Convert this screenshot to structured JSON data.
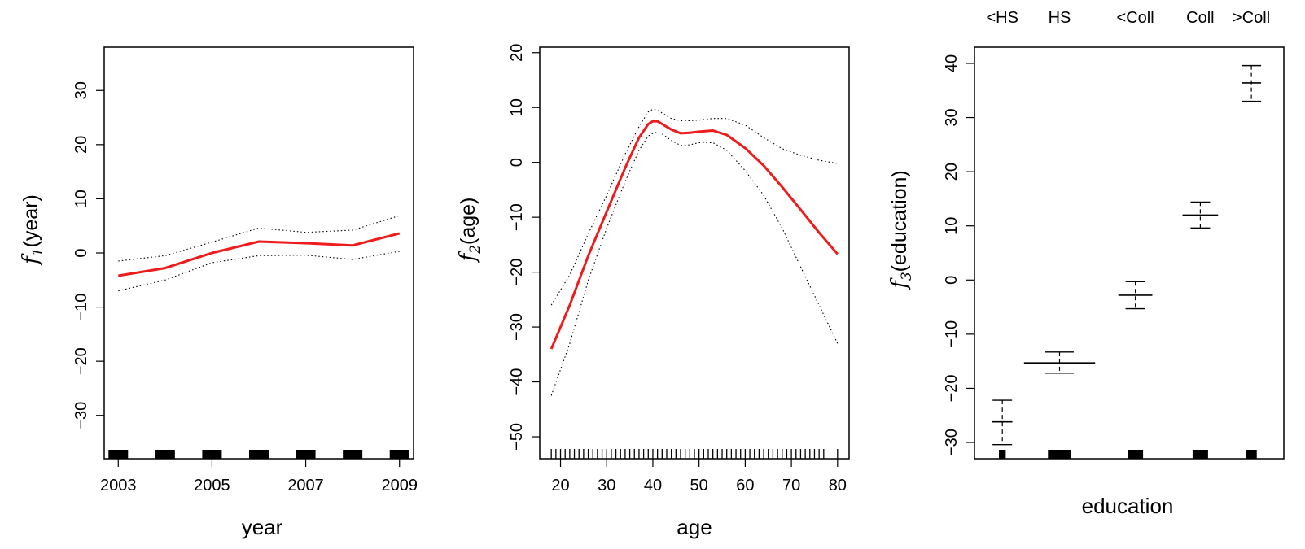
{
  "colors": {
    "fit": "#ee1c1c",
    "band": "#000000",
    "rug": "#000000"
  },
  "chart_data": [
    {
      "type": "line",
      "xlabel": "year",
      "ylabel": {
        "fn": "f",
        "sub": "1",
        "arg": "(year)"
      },
      "xlim": [
        2002.7,
        2009.3
      ],
      "ylim": [
        -38,
        38
      ],
      "xticks": [
        2003,
        2005,
        2007,
        2009
      ],
      "yticks": [
        -30,
        -20,
        -10,
        0,
        10,
        20,
        30
      ],
      "ytick_labels": [
        "−30",
        "−20",
        "−10",
        "0",
        "10",
        "20",
        "30"
      ],
      "rug_style": "blocks",
      "rug": [
        2003,
        2004,
        2005,
        2006,
        2007,
        2008,
        2009
      ],
      "series": [
        {
          "role": "fit",
          "x": [
            2003,
            2004,
            2005,
            2006,
            2007,
            2008,
            2009
          ],
          "y": [
            -4.2,
            -2.8,
            0.0,
            2.1,
            1.8,
            1.4,
            3.6
          ]
        },
        {
          "role": "upper",
          "x": [
            2003,
            2004,
            2005,
            2006,
            2007,
            2008,
            2009
          ],
          "y": [
            -1.5,
            -0.5,
            2.0,
            4.6,
            3.8,
            4.2,
            6.9
          ]
        },
        {
          "role": "lower",
          "x": [
            2003,
            2004,
            2005,
            2006,
            2007,
            2008,
            2009
          ],
          "y": [
            -7.0,
            -5.0,
            -1.8,
            -0.5,
            -0.4,
            -1.2,
            0.3
          ]
        }
      ]
    },
    {
      "type": "line",
      "xlabel": "age",
      "ylabel": {
        "fn": "f",
        "sub": "2",
        "arg": "(age)"
      },
      "xlim": [
        15.5,
        82.5
      ],
      "ylim": [
        -54,
        21
      ],
      "xticks": [
        20,
        30,
        40,
        50,
        60,
        70,
        80
      ],
      "yticks": [
        -50,
        -40,
        -30,
        -20,
        -10,
        0,
        10,
        20
      ],
      "ytick_labels": [
        "−50",
        "−40",
        "−30",
        "−20",
        "−10",
        "0",
        "10",
        "20"
      ],
      "rug_style": "ticks",
      "rug": [
        18,
        19,
        20,
        21,
        22,
        23,
        24,
        25,
        26,
        27,
        28,
        29,
        30,
        31,
        32,
        33,
        34,
        35,
        36,
        37,
        38,
        39,
        40,
        41,
        42,
        43,
        44,
        45,
        46,
        47,
        48,
        49,
        50,
        51,
        52,
        53,
        54,
        55,
        56,
        57,
        58,
        59,
        60,
        61,
        62,
        63,
        64,
        65,
        66,
        67,
        68,
        69,
        70,
        71,
        72,
        73,
        74,
        75,
        76,
        77,
        80
      ],
      "series": [
        {
          "role": "fit",
          "x": [
            18,
            22,
            26,
            30,
            34,
            37,
            39,
            40,
            41,
            42,
            44,
            46,
            48,
            50,
            53,
            56,
            60,
            64,
            68,
            72,
            76,
            80
          ],
          "y": [
            -34,
            -26,
            -17,
            -9,
            -1,
            4.5,
            7,
            7.5,
            7.5,
            7,
            6,
            5.3,
            5.4,
            5.6,
            5.8,
            5.0,
            2.6,
            -0.6,
            -4.5,
            -8.6,
            -12.8,
            -16.7
          ]
        },
        {
          "role": "upper",
          "x": [
            18,
            22,
            26,
            30,
            34,
            37,
            39,
            40,
            41,
            42,
            44,
            46,
            48,
            50,
            53,
            56,
            60,
            64,
            68,
            72,
            76,
            80
          ],
          "y": [
            -26,
            -20.5,
            -13,
            -6,
            1.5,
            6.5,
            9.2,
            9.7,
            9.5,
            9,
            8,
            7.6,
            7.6,
            7.7,
            8,
            8,
            6.8,
            4.5,
            2.5,
            1.3,
            0.4,
            -0.2
          ]
        },
        {
          "role": "lower",
          "x": [
            18,
            22,
            26,
            30,
            34,
            37,
            39,
            40,
            41,
            42,
            44,
            46,
            48,
            50,
            53,
            56,
            60,
            64,
            68,
            72,
            76,
            80
          ],
          "y": [
            -42.5,
            -33,
            -21.5,
            -12,
            -3.5,
            2.2,
            4.8,
            5.3,
            5.5,
            5.2,
            4,
            3.1,
            3.2,
            3.6,
            3.6,
            2.2,
            -1.5,
            -6,
            -12,
            -19,
            -26,
            -33
          ]
        }
      ]
    },
    {
      "type": "categorical",
      "xlabel": "education",
      "ylabel": {
        "fn": "f",
        "sub": "3",
        "arg": "(education)"
      },
      "ylim": [
        -33,
        43
      ],
      "yticks": [
        -30,
        -20,
        -10,
        0,
        10,
        20,
        30,
        40
      ],
      "ytick_labels": [
        "−30",
        "−20",
        "−10",
        "0",
        "10",
        "20",
        "30",
        "40"
      ],
      "categories": [
        "<HS",
        "HS",
        "<Coll",
        "Coll",
        ">Coll"
      ],
      "category_centers": [
        0.09,
        0.275,
        0.52,
        0.73,
        0.895
      ],
      "category_widths": [
        0.065,
        0.23,
        0.11,
        0.115,
        0.063
      ],
      "fit": [
        -26.2,
        -15.3,
        -2.8,
        12.0,
        36.4
      ],
      "upper": [
        -22.2,
        -13.3,
        -0.3,
        14.4,
        39.6
      ],
      "lower": [
        -30.4,
        -17.2,
        -5.3,
        9.6,
        33.0
      ],
      "rug_widths": [
        0.022,
        0.075,
        0.05,
        0.05,
        0.035
      ]
    }
  ]
}
